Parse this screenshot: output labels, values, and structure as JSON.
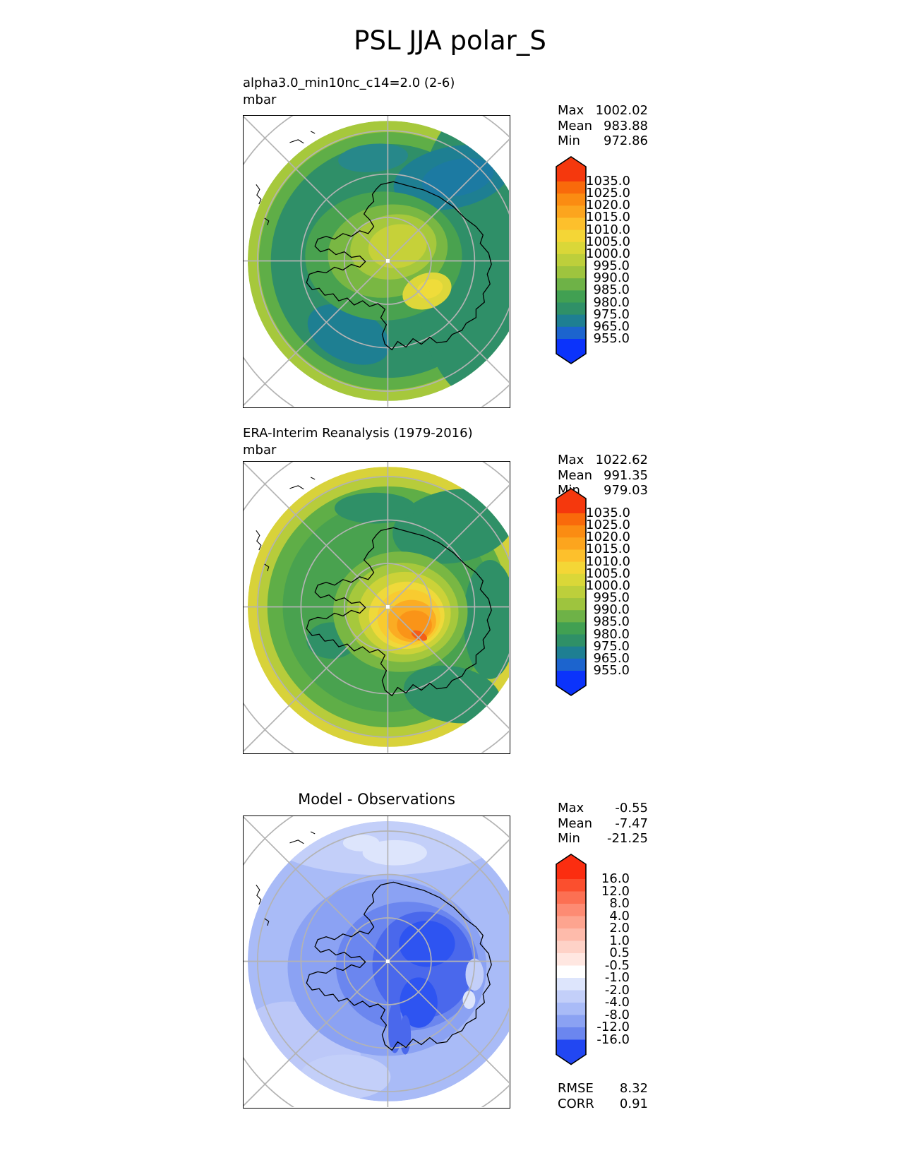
{
  "title": "PSL JJA polar_S",
  "panels": [
    {
      "id": "model",
      "subtitle": "alpha3.0_min10nc_c14=2.0 (2-6)",
      "units": "mbar",
      "stats": [
        {
          "label": "Max",
          "value": "1002.02"
        },
        {
          "label": "Mean",
          "value": "983.88"
        },
        {
          "label": "Min",
          "value": "972.86"
        }
      ],
      "colorbar": {
        "labels": [
          "1035.0",
          "1025.0",
          "1020.0",
          "1015.0",
          "1010.0",
          "1005.0",
          "1000.0",
          "995.0",
          "990.0",
          "985.0",
          "980.0",
          "975.0",
          "965.0",
          "955.0"
        ],
        "colors": [
          "#F5380D",
          "#F96A0B",
          "#FB8C12",
          "#FCA51E",
          "#FDC02C",
          "#F4D636",
          "#DAD738",
          "#BDCF3B",
          "#9EC43E",
          "#6EB247",
          "#41A052",
          "#2F9067",
          "#1E7F92",
          "#1C64CE",
          "#0B33FB"
        ]
      }
    },
    {
      "id": "reference",
      "subtitle": "ERA-Interim Reanalysis (1979-2016)",
      "units": "mbar",
      "stats": [
        {
          "label": "Max",
          "value": "1022.62"
        },
        {
          "label": "Mean",
          "value": "991.35"
        },
        {
          "label": "Min",
          "value": "979.03"
        }
      ],
      "colorbar": {
        "labels": [
          "1035.0",
          "1025.0",
          "1020.0",
          "1015.0",
          "1010.0",
          "1005.0",
          "1000.0",
          "995.0",
          "990.0",
          "985.0",
          "980.0",
          "975.0",
          "965.0",
          "955.0"
        ],
        "colors": [
          "#F5380D",
          "#F96A0B",
          "#FB8C12",
          "#FCA51E",
          "#FDC02C",
          "#F4D636",
          "#DAD738",
          "#BDCF3B",
          "#9EC43E",
          "#6EB247",
          "#41A052",
          "#2F9067",
          "#1E7F92",
          "#1C64CE",
          "#0B33FB"
        ]
      }
    },
    {
      "id": "difference",
      "subtitle": "Model - Observations",
      "stats": [
        {
          "label": "Max",
          "value": "-0.55"
        },
        {
          "label": "Mean",
          "value": "-7.47"
        },
        {
          "label": "Min",
          "value": "-21.25"
        }
      ],
      "colorbar": {
        "labels": [
          "16.0",
          "12.0",
          "8.0",
          "4.0",
          "2.0",
          "1.0",
          "0.5",
          "-0.5",
          "-1.0",
          "-2.0",
          "-4.0",
          "-8.0",
          "-12.0",
          "-16.0"
        ],
        "colors": [
          "#FB2D10",
          "#FB4F2E",
          "#FC7053",
          "#FD8B73",
          "#FDA48F",
          "#FEBBAB",
          "#FED2C7",
          "#FFE7E1",
          "#FFFFFF",
          "#DDE5FC",
          "#C3CFF9",
          "#A9BBF7",
          "#8BA2F3",
          "#6B86EF",
          "#2247F2"
        ]
      },
      "metrics": [
        {
          "label": "RMSE",
          "value": "8.32"
        },
        {
          "label": "CORR",
          "value": "0.91"
        }
      ]
    }
  ],
  "chart_data": [
    {
      "type": "heatmap",
      "subtype": "filled_contour_polar_map",
      "variable": "PSL",
      "season": "JJA",
      "region": "polar_S",
      "projection": "south polar stereographic",
      "title": "alpha3.0_min10nc_c14=2.0 (2-6)",
      "units": "mbar",
      "stats": {
        "max": 1002.02,
        "mean": 983.88,
        "min": 972.86
      },
      "contour_levels": [
        955.0,
        965.0,
        975.0,
        980.0,
        985.0,
        990.0,
        995.0,
        1000.0,
        1005.0,
        1010.0,
        1015.0,
        1020.0,
        1025.0,
        1035.0
      ],
      "palette_top_to_bottom": [
        "#F5380D",
        "#F96A0B",
        "#FB8C12",
        "#FCA51E",
        "#FDC02C",
        "#F4D636",
        "#DAD738",
        "#BDCF3B",
        "#9EC43E",
        "#6EB247",
        "#41A052",
        "#2F9067",
        "#1E7F92",
        "#1C64CE",
        "#0B33FB"
      ],
      "legend_position": "right",
      "gridlines": true
    },
    {
      "type": "heatmap",
      "subtype": "filled_contour_polar_map",
      "variable": "PSL",
      "season": "JJA",
      "region": "polar_S",
      "projection": "south polar stereographic",
      "title": "ERA-Interim Reanalysis (1979-2016)",
      "units": "mbar",
      "stats": {
        "max": 1022.62,
        "mean": 991.35,
        "min": 979.03
      },
      "contour_levels": [
        955.0,
        965.0,
        975.0,
        980.0,
        985.0,
        990.0,
        995.0,
        1000.0,
        1005.0,
        1010.0,
        1015.0,
        1020.0,
        1025.0,
        1035.0
      ],
      "palette_top_to_bottom": [
        "#F5380D",
        "#F96A0B",
        "#FB8C12",
        "#FCA51E",
        "#FDC02C",
        "#F4D636",
        "#DAD738",
        "#BDCF3B",
        "#9EC43E",
        "#6EB247",
        "#41A052",
        "#2F9067",
        "#1E7F92",
        "#1C64CE",
        "#0B33FB"
      ],
      "legend_position": "right",
      "gridlines": true
    },
    {
      "type": "heatmap",
      "subtype": "filled_contour_polar_map",
      "variable": "PSL difference",
      "season": "JJA",
      "region": "polar_S",
      "projection": "south polar stereographic",
      "title": "Model - Observations",
      "units": "mbar",
      "stats": {
        "max": -0.55,
        "mean": -7.47,
        "min": -21.25
      },
      "contour_levels": [
        -16.0,
        -12.0,
        -8.0,
        -4.0,
        -2.0,
        -1.0,
        -0.5,
        0.5,
        1.0,
        2.0,
        4.0,
        8.0,
        12.0,
        16.0
      ],
      "palette_top_to_bottom": [
        "#FB2D10",
        "#FB4F2E",
        "#FC7053",
        "#FD8B73",
        "#FDA48F",
        "#FEBBAB",
        "#FED2C7",
        "#FFE7E1",
        "#FFFFFF",
        "#DDE5FC",
        "#C3CFF9",
        "#A9BBF7",
        "#8BA2F3",
        "#6B86EF",
        "#2247F2"
      ],
      "legend_position": "right",
      "gridlines": true,
      "metrics": {
        "RMSE": 8.32,
        "CORR": 0.91
      }
    }
  ]
}
